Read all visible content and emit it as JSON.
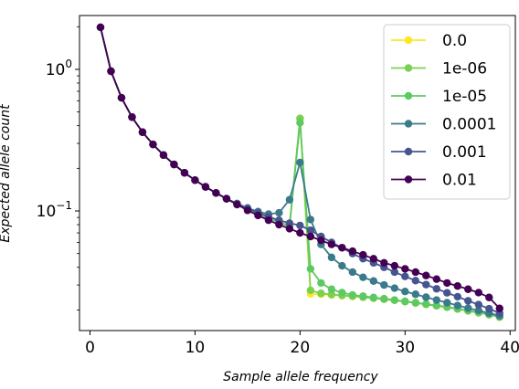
{
  "chart_data": {
    "type": "line",
    "xlabel": "Sample allele frequency",
    "ylabel": "Expected allele count",
    "xlim": [
      -1,
      40.5
    ],
    "ylim": [
      0.0143,
      2.4
    ],
    "yscale": "log",
    "x_ticks": [
      0,
      10,
      20,
      30,
      40
    ],
    "x_tick_labels": [
      "0",
      "10",
      "20",
      "30",
      "40"
    ],
    "y_ticks": [
      1,
      0.1
    ],
    "y_tick_labels": [
      {
        "base": "10",
        "exp": "0"
      },
      {
        "base": "10",
        "exp": "−1"
      }
    ],
    "grid": false,
    "legend_position": "top-right",
    "marker": "circle",
    "x": [
      1,
      2,
      3,
      4,
      5,
      6,
      7,
      8,
      9,
      10,
      11,
      12,
      13,
      14,
      15,
      16,
      17,
      18,
      19,
      20,
      21,
      22,
      23,
      24,
      25,
      26,
      27,
      28,
      29,
      30,
      31,
      32,
      33,
      34,
      35,
      36,
      37,
      38,
      39
    ],
    "series": [
      {
        "name": "0.0",
        "color": "#fde725",
        "values": [
          1.98,
          0.97,
          0.63,
          0.46,
          0.36,
          0.295,
          0.248,
          0.213,
          0.186,
          0.165,
          0.148,
          0.134,
          0.122,
          0.112,
          0.103,
          0.096,
          0.089,
          0.083,
          0.078,
          0.45,
          0.026,
          0.0258,
          0.0255,
          0.0252,
          0.0249,
          0.0246,
          0.0242,
          0.0238,
          0.0234,
          0.0229,
          0.0224,
          0.0219,
          0.0214,
          0.0209,
          0.0203,
          0.0197,
          0.0191,
          0.0185,
          0.0178
        ]
      },
      {
        "name": "1e-06",
        "color": "#7ad151",
        "values": [
          1.98,
          0.97,
          0.63,
          0.46,
          0.36,
          0.295,
          0.248,
          0.213,
          0.186,
          0.165,
          0.148,
          0.134,
          0.122,
          0.112,
          0.103,
          0.096,
          0.089,
          0.083,
          0.078,
          0.45,
          0.0275,
          0.0262,
          0.0257,
          0.0253,
          0.025,
          0.0246,
          0.0242,
          0.0238,
          0.0234,
          0.0229,
          0.0224,
          0.0219,
          0.0214,
          0.0209,
          0.0203,
          0.0197,
          0.0191,
          0.0185,
          0.0178
        ]
      },
      {
        "name": "1e-05",
        "color": "#5ec962",
        "values": [
          1.98,
          0.97,
          0.63,
          0.46,
          0.36,
          0.295,
          0.248,
          0.213,
          0.186,
          0.165,
          0.148,
          0.134,
          0.122,
          0.112,
          0.103,
          0.096,
          0.089,
          0.083,
          0.079,
          0.42,
          0.039,
          0.031,
          0.028,
          0.0265,
          0.0255,
          0.025,
          0.0245,
          0.024,
          0.0235,
          0.023,
          0.0225,
          0.022,
          0.0215,
          0.021,
          0.0204,
          0.0198,
          0.0192,
          0.0186,
          0.018
        ]
      },
      {
        "name": "0.0001",
        "color": "#3b7a8a",
        "values": [
          1.98,
          0.97,
          0.63,
          0.46,
          0.36,
          0.295,
          0.248,
          0.213,
          0.186,
          0.165,
          0.148,
          0.134,
          0.122,
          0.113,
          0.105,
          0.099,
          0.095,
          0.097,
          0.12,
          0.22,
          0.087,
          0.058,
          0.047,
          0.041,
          0.037,
          0.034,
          0.032,
          0.03,
          0.0285,
          0.027,
          0.0258,
          0.0246,
          0.0235,
          0.0225,
          0.0215,
          0.0206,
          0.0198,
          0.019,
          0.0182
        ]
      },
      {
        "name": "0.001",
        "color": "#46558f",
        "values": [
          1.98,
          0.97,
          0.63,
          0.46,
          0.36,
          0.295,
          0.248,
          0.213,
          0.186,
          0.165,
          0.148,
          0.134,
          0.122,
          0.112,
          0.104,
          0.097,
          0.091,
          0.086,
          0.082,
          0.079,
          0.073,
          0.066,
          0.06,
          0.055,
          0.05,
          0.046,
          0.043,
          0.04,
          0.037,
          0.0345,
          0.0322,
          0.0302,
          0.0282,
          0.0264,
          0.0248,
          0.0232,
          0.0218,
          0.0204,
          0.019
        ]
      },
      {
        "name": "0.01",
        "color": "#440154",
        "values": [
          1.98,
          0.97,
          0.63,
          0.46,
          0.36,
          0.295,
          0.248,
          0.213,
          0.186,
          0.165,
          0.148,
          0.134,
          0.122,
          0.111,
          0.101,
          0.093,
          0.086,
          0.08,
          0.075,
          0.07,
          0.066,
          0.062,
          0.058,
          0.055,
          0.052,
          0.049,
          0.046,
          0.043,
          0.041,
          0.039,
          0.037,
          0.035,
          0.033,
          0.031,
          0.0295,
          0.028,
          0.0265,
          0.0245,
          0.0205
        ]
      }
    ]
  }
}
